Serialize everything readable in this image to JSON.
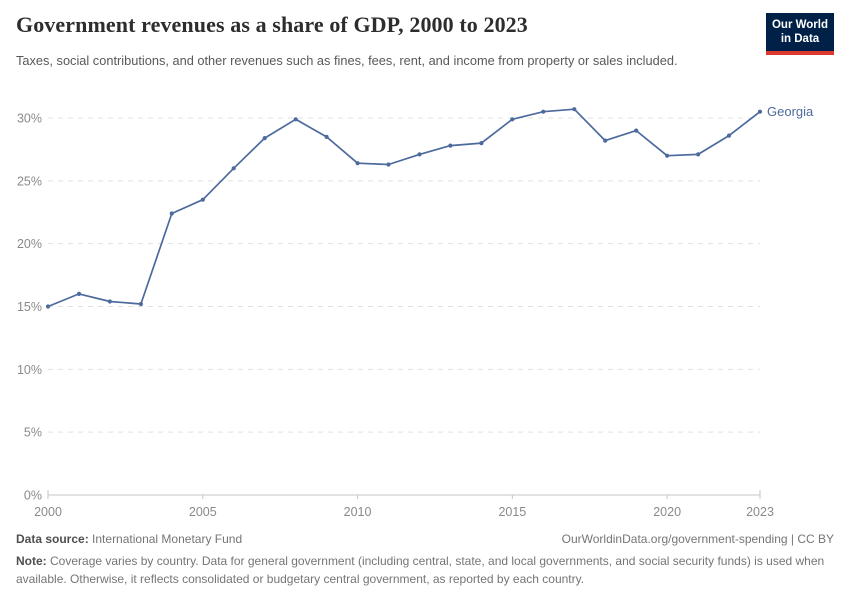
{
  "header": {
    "title": "Government revenues as a share of GDP, 2000 to 2023",
    "subtitle": "Taxes, social contributions, and other revenues such as fines, fees, rent, and income from property or sales included.",
    "logo_line1": "Our World",
    "logo_line2": "in Data"
  },
  "chart_data": {
    "type": "line",
    "title": "Government revenues as a share of GDP, 2000 to 2023",
    "xlabel": "",
    "ylabel": "",
    "xlim": [
      2000,
      2023
    ],
    "ylim": [
      0,
      30
    ],
    "x_ticks": [
      2000,
      2005,
      2010,
      2015,
      2020,
      2023
    ],
    "y_ticks": [
      0,
      5,
      10,
      15,
      20,
      25,
      30
    ],
    "y_tick_suffix": "%",
    "grid": "horizontal-dashed",
    "legend": "end-of-line-label",
    "series": [
      {
        "name": "Georgia",
        "color": "#4c6a9c",
        "x": [
          2000,
          2001,
          2002,
          2003,
          2004,
          2005,
          2006,
          2007,
          2008,
          2009,
          2010,
          2011,
          2012,
          2013,
          2014,
          2015,
          2016,
          2017,
          2018,
          2019,
          2020,
          2021,
          2022,
          2023
        ],
        "values": [
          15.0,
          16.0,
          15.4,
          15.2,
          22.4,
          23.5,
          26.0,
          28.4,
          29.9,
          28.5,
          26.4,
          26.3,
          27.1,
          27.8,
          28.0,
          29.9,
          30.5,
          30.7,
          28.2,
          29.0,
          27.0,
          27.1,
          28.6,
          30.5
        ]
      }
    ]
  },
  "footer": {
    "datasource_label": "Data source:",
    "datasource_value": "International Monetary Fund",
    "link": "OurWorldinData.org/government-spending | CC BY",
    "note_label": "Note:",
    "note_text": "Coverage varies by country. Data for general government (including central, state, and local governments, and social security funds) is used when available. Otherwise, it reflects consolidated or budgetary central government, as reported by each country."
  },
  "colors": {
    "line": "#4c6a9c",
    "logo_bg": "#002147",
    "logo_red": "#dc3a2f",
    "gridline": "#e0e0e0",
    "axis": "#c6c6c6",
    "tick_text": "#8a8a8a"
  }
}
